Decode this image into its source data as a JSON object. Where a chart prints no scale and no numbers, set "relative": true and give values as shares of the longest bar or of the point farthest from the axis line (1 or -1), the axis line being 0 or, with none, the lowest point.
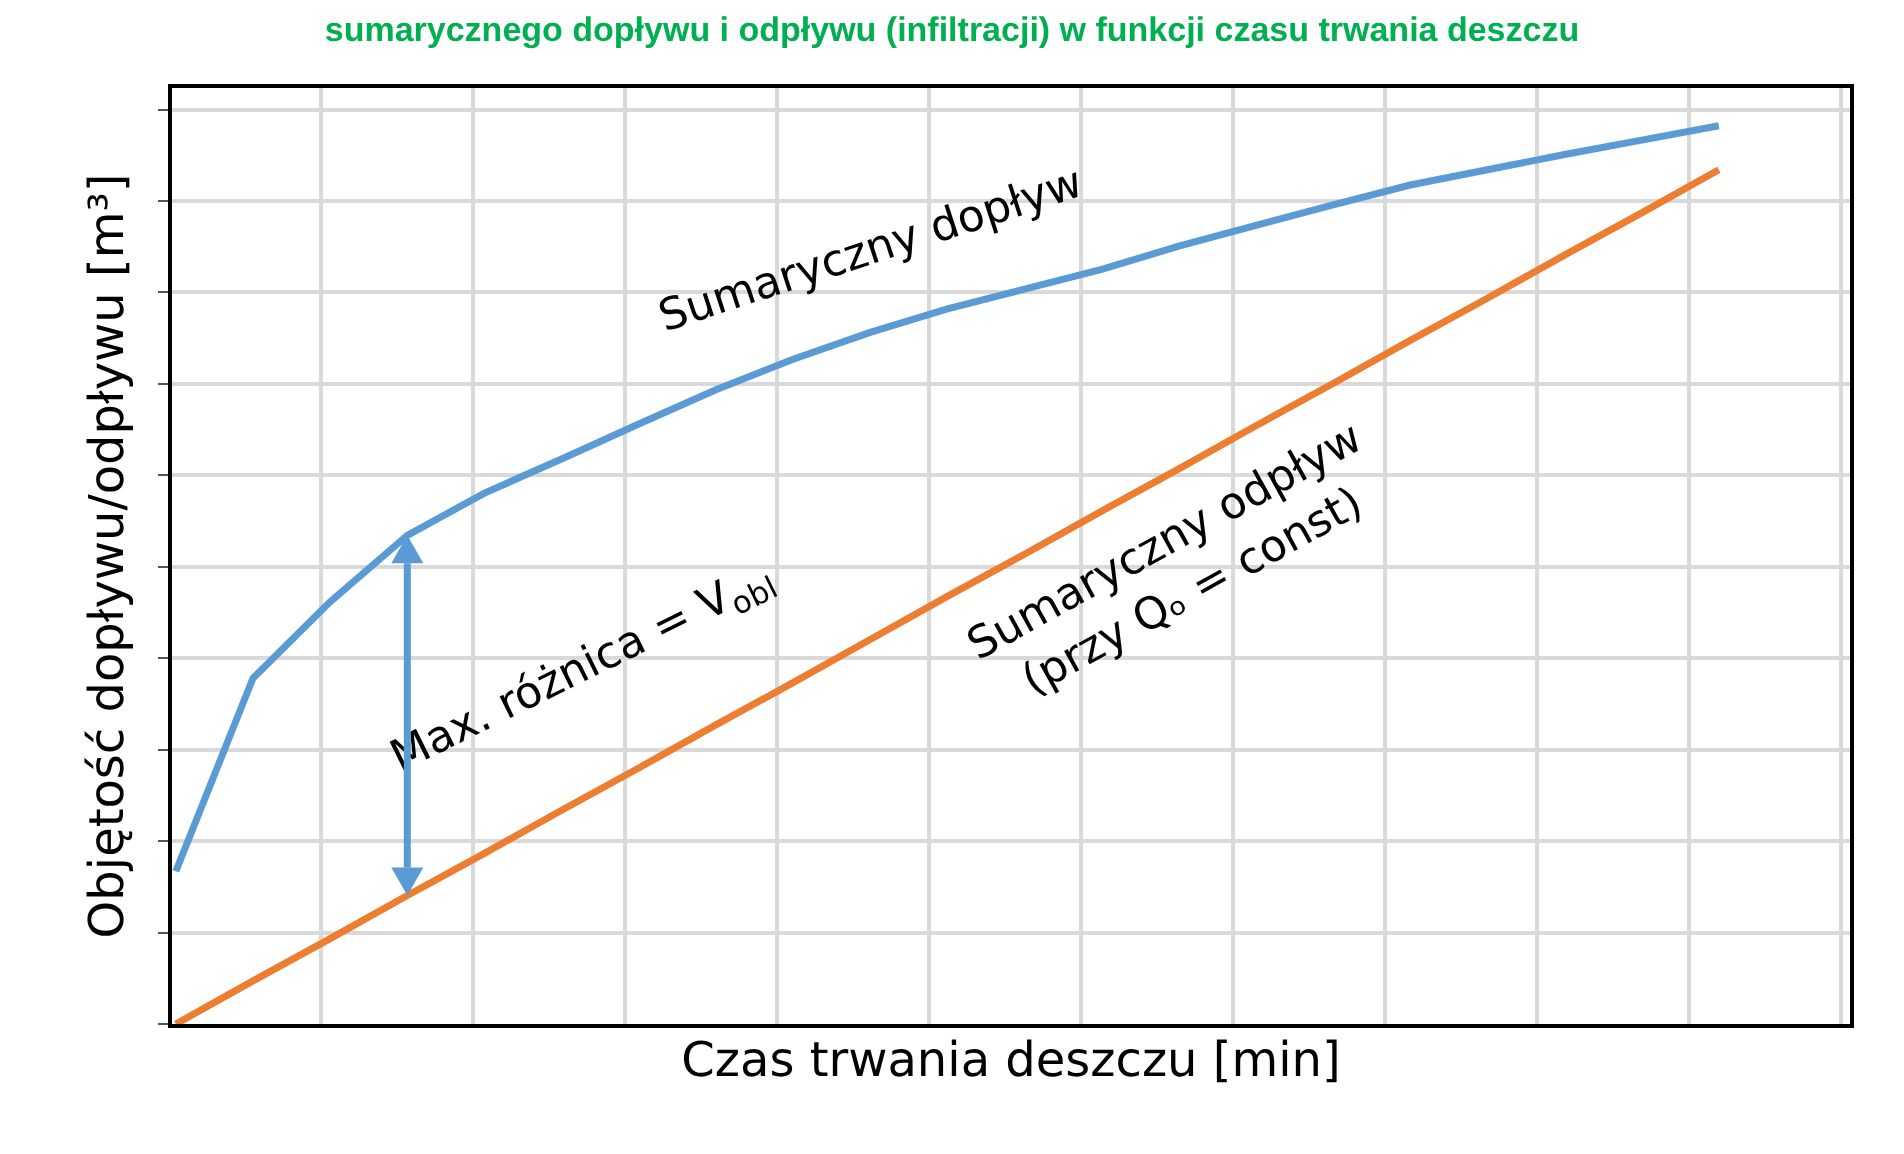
{
  "chart_data": {
    "type": "line",
    "relative": true,
    "grid": true,
    "legend": false,
    "marker": "none",
    "line_style": "solid",
    "title": "sumarycznego dopływu i odpływu (infiltracji) w funkcji czasu trwania deszczu",
    "xlabel": "Czas trwania deszczu [min]",
    "ylabel": "Objętość dopływu/odpływu [m³]",
    "annotations": [
      "Max. różnica = V$_{obl}$"
    ],
    "categories": [
      null,
      null,
      null,
      null,
      null,
      null,
      null,
      null,
      null,
      null,
      null,
      null,
      null,
      null,
      null,
      null,
      null,
      null,
      null,
      null,
      null
    ],
    "series": [
      {
        "name": "Sumaryczny dopływ",
        "color": "#5b9bd5",
        "values": [
          0.17,
          0.385,
          0.47,
          0.544,
          0.591,
          0.629,
          0.668,
          0.706,
          0.74,
          0.77,
          0.796,
          0.818,
          0.84,
          0.866,
          0.889,
          0.912,
          0.934,
          0.951,
          0.968,
          0.984,
          1
        ]
      },
      {
        "name": "Sumaryczny odpływ\n(przy Qₒ = const)",
        "color": "#ed7d31",
        "values": [
          0,
          0.048,
          0.095,
          0.143,
          0.19,
          0.238,
          0.285,
          0.333,
          0.38,
          0.428,
          0.476,
          0.523,
          0.571,
          0.618,
          0.666,
          0.713,
          0.761,
          0.808,
          0.856,
          0.903,
          0.951
        ]
      }
    ]
  }
}
